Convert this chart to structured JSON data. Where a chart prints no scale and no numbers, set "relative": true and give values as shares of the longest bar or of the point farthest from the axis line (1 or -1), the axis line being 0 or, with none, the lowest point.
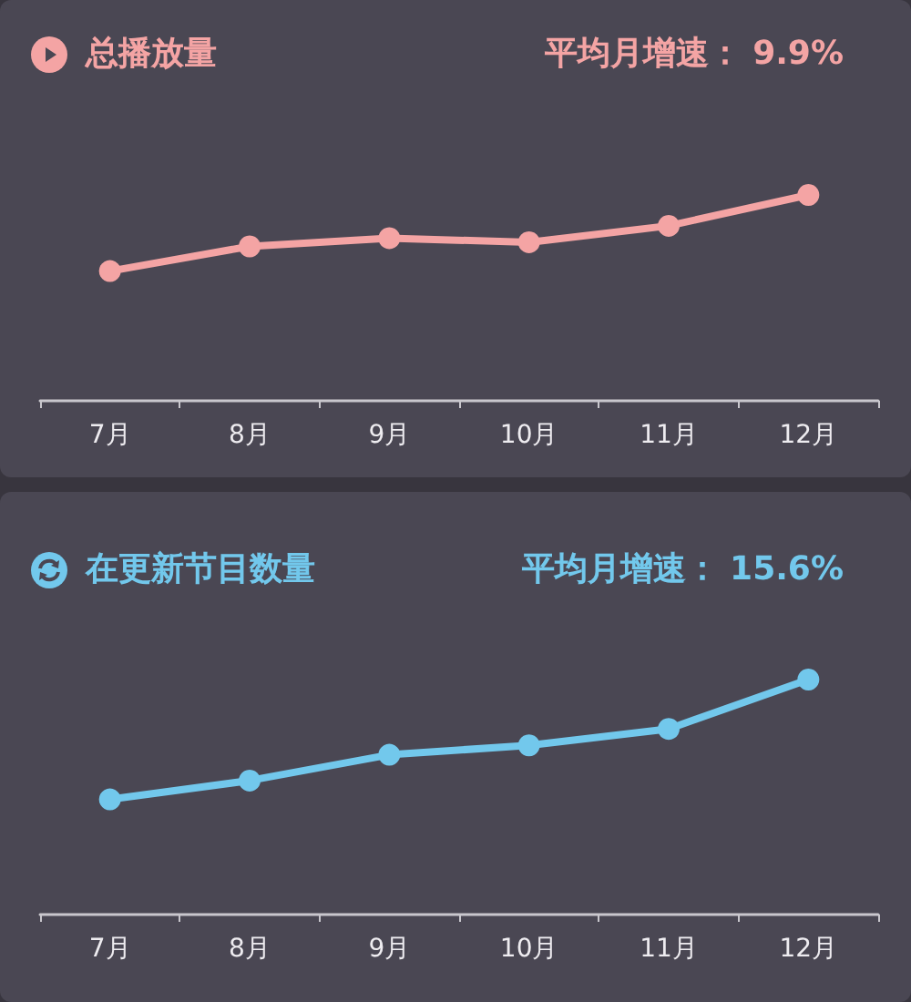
{
  "chart_data": [
    {
      "type": "line",
      "title": "总播放量",
      "annotations": [
        "平均月增速： 9.9%"
      ],
      "categories": [
        "7月",
        "8月",
        "9月",
        "10月",
        "11月",
        "12月"
      ],
      "relative": true,
      "marker": "circle",
      "series": [
        {
          "color": "#f4a4a4",
          "values": [
            0.63,
            0.75,
            0.79,
            0.77,
            0.85,
            1
          ]
        }
      ]
    },
    {
      "type": "line",
      "title": "在更新节目数量",
      "annotations": [
        "平均月增速： 15.6%"
      ],
      "categories": [
        "7月",
        "8月",
        "9月",
        "10月",
        "11月",
        "12月"
      ],
      "relative": true,
      "marker": "circle",
      "series": [
        {
          "color": "#72c8ec",
          "values": [
            0.49,
            0.57,
            0.68,
            0.72,
            0.79,
            1
          ]
        }
      ]
    }
  ]
}
